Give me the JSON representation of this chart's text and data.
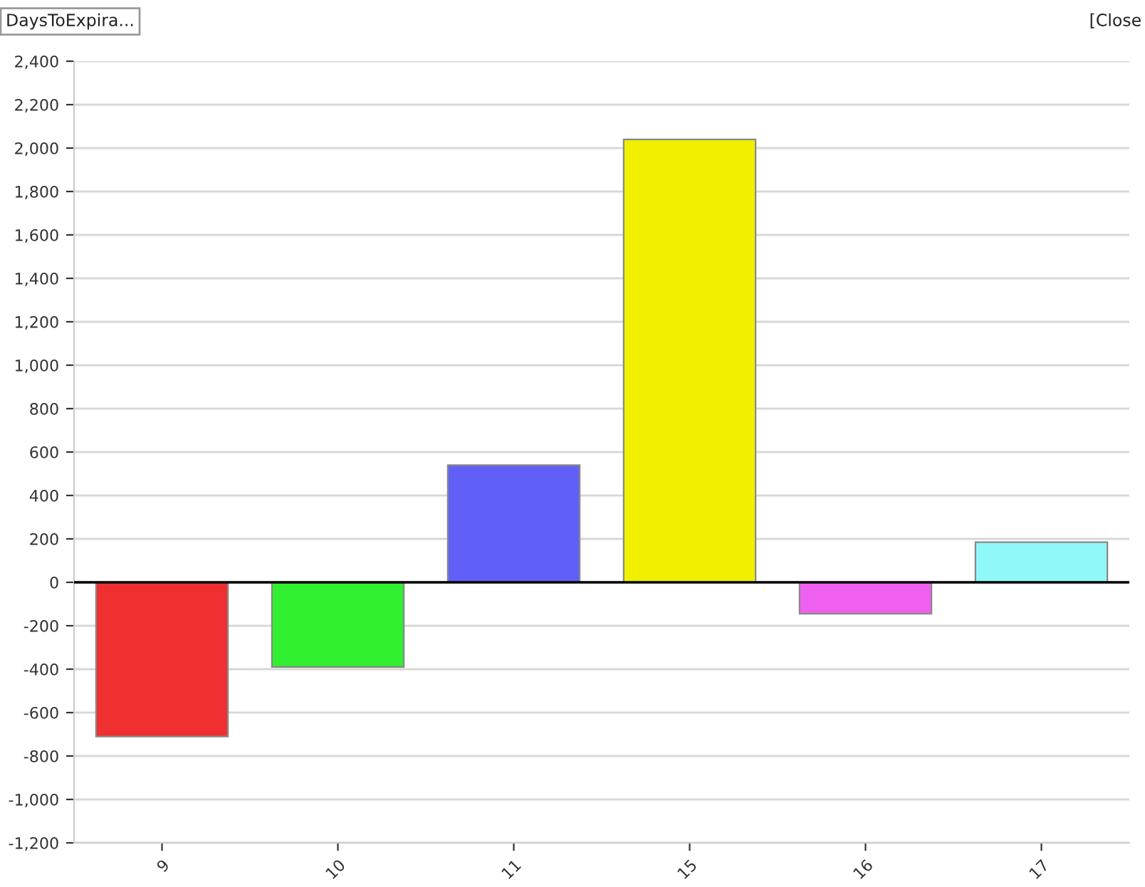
{
  "chart_data": {
    "type": "bar",
    "categories": [
      "9",
      "10",
      "11",
      "15",
      "16",
      "17"
    ],
    "values": [
      -710,
      -390,
      540,
      2040,
      -145,
      185
    ],
    "colors": [
      "#f03030",
      "#30f030",
      "#6060f8",
      "#f0f000",
      "#f060f0",
      "#90f8f8"
    ],
    "ylim": [
      -1200,
      2400
    ],
    "yticks": [
      {
        "value": -1200,
        "label": "-1,200"
      },
      {
        "value": -1000,
        "label": "-1,000"
      },
      -800,
      -600,
      -400,
      -200,
      0,
      200,
      400,
      600,
      800,
      {
        "value": 1000,
        "label": "1,000"
      },
      {
        "value": 1200,
        "label": "1,200"
      },
      {
        "value": 1400,
        "label": "1,400"
      },
      {
        "value": 1600,
        "label": "1,600"
      },
      {
        "value": 1800,
        "label": "1,800"
      },
      {
        "value": 2000,
        "label": "2,000"
      },
      {
        "value": 2200,
        "label": "2,200"
      },
      {
        "value": 2400,
        "label": "2,400"
      }
    ],
    "grid": "y",
    "annotations": [
      "DaysToExpira...",
      "[Close"
    ]
  }
}
